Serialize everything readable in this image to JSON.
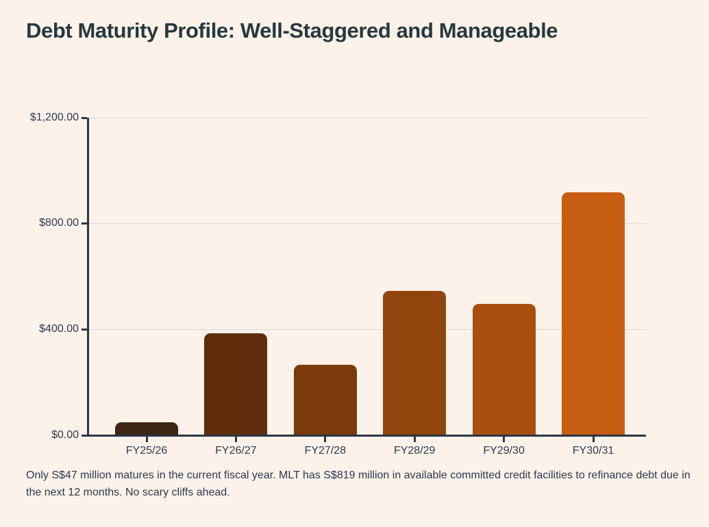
{
  "page": {
    "title": "Debt Maturity Profile: Well-Staggered and Manageable",
    "footnote": "Only S$47 million matures in the current fiscal year. MLT has S$819 million in available committed credit facilities to refinance debt due in the next 12 months. No scary cliffs ahead."
  },
  "colors": {
    "background": "#fcf2e9",
    "title_text": "#27393f",
    "axis": "#2b3547",
    "tick_label": "#2e3a52",
    "gridline": "#ded6d0",
    "footnote_text": "#2c3850"
  },
  "chart_data": {
    "type": "bar",
    "title": "Debt Maturity Profile: Well-Staggered and Manageable",
    "categories": [
      "FY25/26",
      "FY26/27",
      "FY27/28",
      "FY28/29",
      "FY29/30",
      "FY30/31"
    ],
    "values": [
      47,
      383,
      265,
      545,
      494,
      918
    ],
    "bar_colors": [
      "#3e2512",
      "#5f2d0b",
      "#7a3a0a",
      "#91440c",
      "#aa500e",
      "#c65d11"
    ],
    "xlabel": "",
    "ylabel": "",
    "ylim": [
      0,
      1200
    ],
    "ytick_values": [
      0,
      400,
      800,
      1200
    ],
    "ytick_labels": [
      "$0.00",
      "$400.00",
      "$800.00",
      "$1,200.00"
    ],
    "grid": true,
    "legend": false
  }
}
